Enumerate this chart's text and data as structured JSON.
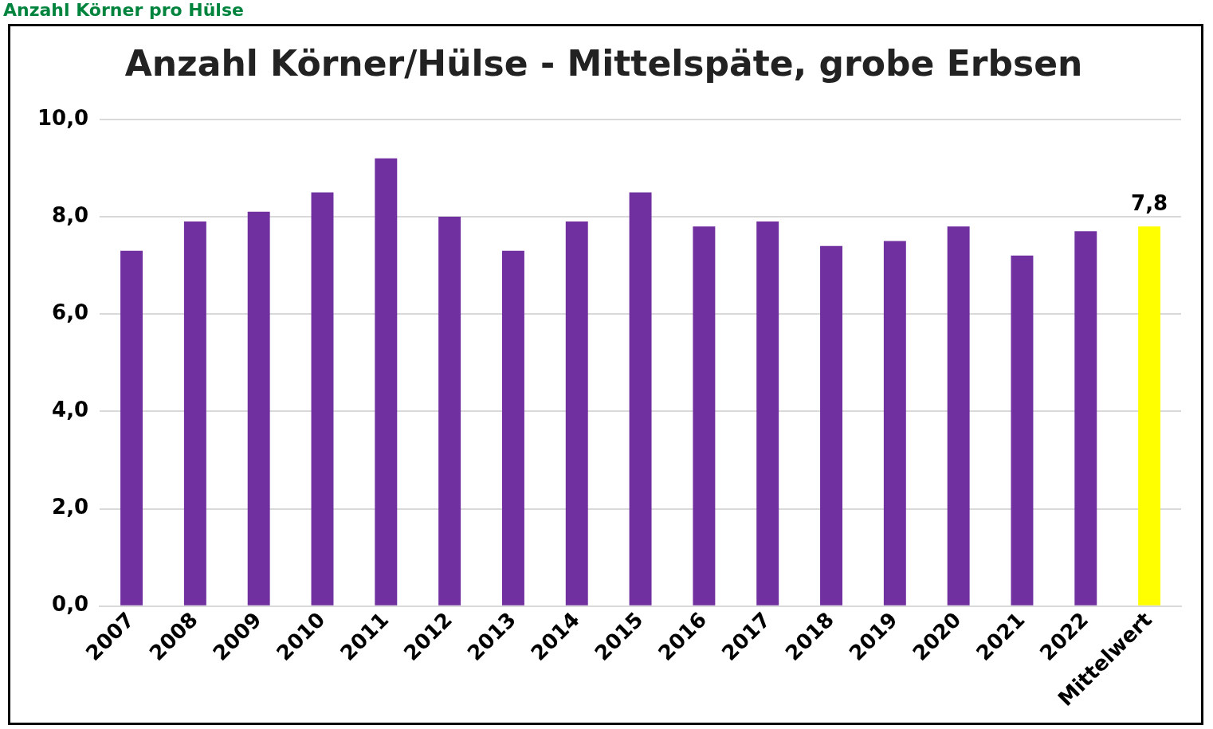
{
  "chart_data": {
    "type": "bar",
    "title": "Anzahl Körner/Hülse - Mittelspäte, grobe Erbsen",
    "annotations": [
      "Anzahl Körner pro Hülse"
    ],
    "categories": [
      "2007",
      "2008",
      "2009",
      "2010",
      "2011",
      "2012",
      "2013",
      "2014",
      "2015",
      "2016",
      "2017",
      "2018",
      "2019",
      "2020",
      "2021",
      "2022",
      "Mittelwert"
    ],
    "values": [
      7.3,
      7.9,
      8.1,
      8.5,
      9.2,
      8.0,
      7.3,
      7.9,
      8.5,
      7.8,
      7.9,
      7.4,
      7.5,
      7.8,
      7.2,
      7.7,
      7.8
    ],
    "colors": [
      "#7030a0",
      "#7030a0",
      "#7030a0",
      "#7030a0",
      "#7030a0",
      "#7030a0",
      "#7030a0",
      "#7030a0",
      "#7030a0",
      "#7030a0",
      "#7030a0",
      "#7030a0",
      "#7030a0",
      "#7030a0",
      "#7030a0",
      "#7030a0",
      "#ffff00"
    ],
    "value_labels": [
      null,
      null,
      null,
      null,
      null,
      null,
      null,
      null,
      null,
      null,
      null,
      null,
      null,
      null,
      null,
      null,
      "7,8"
    ],
    "ylim": [
      0,
      10
    ],
    "yticks": [
      {
        "value": 0,
        "label": "0,0"
      },
      {
        "value": 2,
        "label": "2,0"
      },
      {
        "value": 4,
        "label": "4,0"
      },
      {
        "value": 6,
        "label": "6,0"
      },
      {
        "value": 8,
        "label": "8,0"
      },
      {
        "value": 10,
        "label": "10,0"
      }
    ],
    "grid": "y",
    "legend": false
  }
}
